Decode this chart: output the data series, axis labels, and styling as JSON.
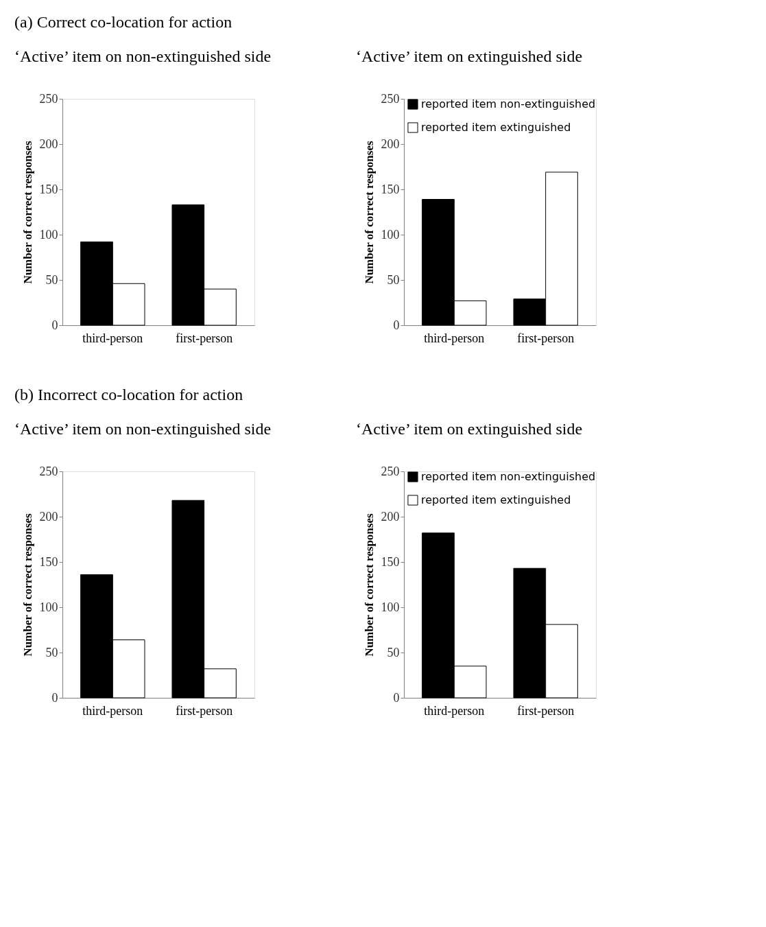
{
  "chart_data": [
    {
      "type": "bar",
      "title": "(a)    Correct co-location for action",
      "subtitle": "‘Active’ item on non-extinguished side",
      "ylabel": "Number of correct responses",
      "categories": [
        "third-person",
        "first-person"
      ],
      "ylim": [
        0,
        250
      ],
      "yticks": [
        0,
        50,
        100,
        150,
        200,
        250
      ],
      "grid": false,
      "legend": false,
      "series": [
        {
          "color": "#000000",
          "values": [
            92,
            133
          ]
        },
        {
          "color": "#ffffff",
          "values": [
            46,
            40
          ]
        }
      ]
    },
    {
      "type": "bar",
      "subtitle": "‘Active’ item on extinguished side",
      "ylabel": "Number of correct responses",
      "categories": [
        "third-person",
        "first-person"
      ],
      "ylim": [
        0,
        250
      ],
      "yticks": [
        0,
        50,
        100,
        150,
        200,
        250
      ],
      "grid": false,
      "legend": "top right",
      "series": [
        {
          "name": "reported item non-extinguished",
          "color": "#000000",
          "values": [
            139,
            29
          ]
        },
        {
          "name": "reported item extinguished",
          "color": "#ffffff",
          "values": [
            27,
            169
          ]
        }
      ]
    },
    {
      "type": "bar",
      "title": "(b)    Incorrect co-location for action",
      "subtitle": "‘Active’ item on non-extinguished side",
      "ylabel": "Number of correct responses",
      "categories": [
        "third-person",
        "first-person"
      ],
      "ylim": [
        0,
        250
      ],
      "yticks": [
        0,
        50,
        100,
        150,
        200,
        250
      ],
      "grid": false,
      "legend": false,
      "series": [
        {
          "color": "#000000",
          "values": [
            136,
            218
          ]
        },
        {
          "color": "#ffffff",
          "values": [
            64,
            32
          ]
        }
      ]
    },
    {
      "type": "bar",
      "subtitle": "‘Active’ item on extinguished side",
      "ylabel": "Number of correct responses",
      "categories": [
        "third-person",
        "first-person"
      ],
      "ylim": [
        0,
        250
      ],
      "yticks": [
        0,
        50,
        100,
        150,
        200,
        250
      ],
      "grid": false,
      "legend": "top right",
      "series": [
        {
          "name": "reported item non-extinguished",
          "color": "#000000",
          "values": [
            182,
            143
          ]
        },
        {
          "name": "reported item extinguished",
          "color": "#ffffff",
          "values": [
            35,
            81
          ]
        }
      ]
    }
  ]
}
